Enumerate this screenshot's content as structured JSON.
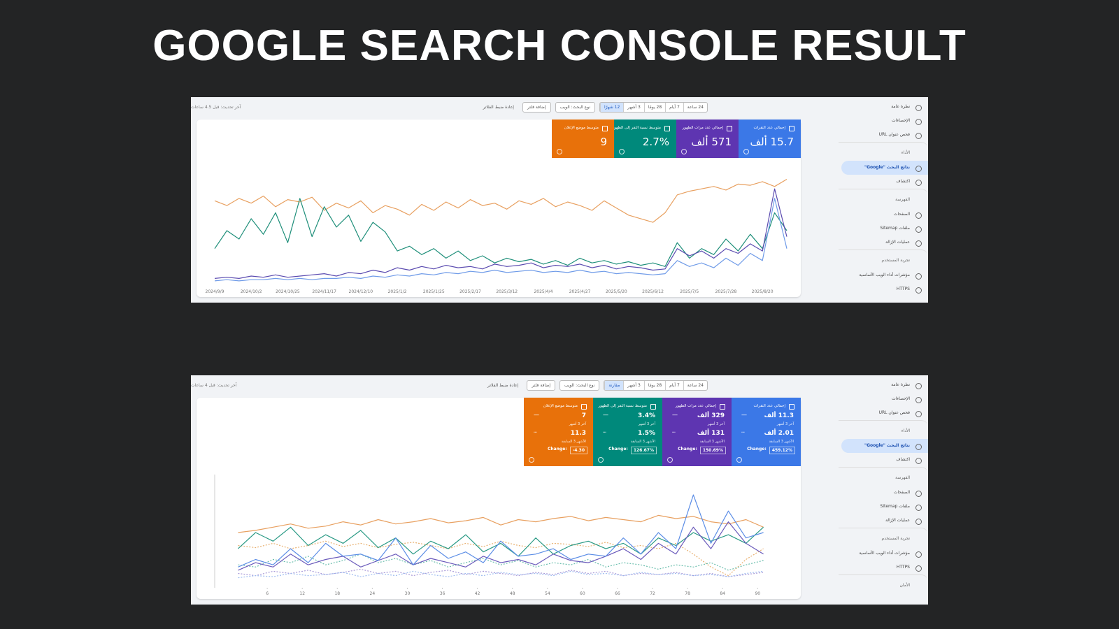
{
  "title": "GOOGLE SEARCH CONSOLE RESULT",
  "panels": [
    {
      "toolbar": {
        "ranges": [
          "24 ساعة",
          "7 أيام",
          "28 يومًا",
          "3 أشهر",
          "12 شهرًا"
        ],
        "selected_range": 4,
        "search_type": "نوع البحث: الويب",
        "add_filter": "إضافة فلتر",
        "reset": "إعادة ضبط الفلاتر",
        "updated": "آخر تحديث: قبل 4.5 ساعات"
      },
      "sidebar": [
        {
          "label": "نظرة عامة"
        },
        {
          "label": "الإحصاءات"
        },
        {
          "label": "فحص عنوان URL"
        },
        {
          "label": "الأداء",
          "kind": "header"
        },
        {
          "label": "نتائج البحث \"Google\"",
          "selected": true
        },
        {
          "label": "اكتشاف"
        },
        {
          "label": "الفهرسة",
          "kind": "header"
        },
        {
          "label": "الصفحات"
        },
        {
          "label": "ملفات Sitemap"
        },
        {
          "label": "عمليات الإزالة"
        },
        {
          "label": "تجربة المستخدم",
          "kind": "header"
        },
        {
          "label": "مؤشرات أداء الويب الأساسية"
        },
        {
          "label": "HTTPS"
        }
      ],
      "cards": [
        {
          "label": "إجمالي عدد النقرات",
          "value": "15.7 ألف",
          "color": "#3b78e7"
        },
        {
          "label": "إجمالي عدد مرات الظهور",
          "value": "571 ألف",
          "color": "#5e35b1"
        },
        {
          "label": "متوسط نسبة النقر إلى الظهور",
          "value": "2.7%",
          "color": "#00897b"
        },
        {
          "label": "متوسط موضع الإعلان",
          "value": "9",
          "color": "#e8710a"
        }
      ],
      "chart": {
        "type": "line",
        "ylim": [
          0,
          100
        ],
        "categories": [
          "2024/9/9",
          null,
          null,
          "2024/10/2",
          null,
          null,
          "2024/10/25",
          null,
          null,
          "2024/11/17",
          null,
          null,
          "2024/12/10",
          null,
          null,
          "2025/1/2",
          null,
          null,
          "2025/1/25",
          null,
          null,
          "2025/2/17",
          null,
          null,
          "2025/3/12",
          null,
          null,
          "2025/4/4",
          null,
          null,
          "2025/4/27",
          null,
          null,
          "2025/5/20",
          null,
          null,
          "2025/6/12",
          null,
          null,
          "2025/7/5",
          null,
          null,
          "2025/7/28",
          null,
          null,
          "2025/8/20",
          null,
          null
        ],
        "series": [
          {
            "color": "#e8a060",
            "values": [
              70,
              66,
              72,
              68,
              74,
              65,
              71,
              69,
              73,
              62,
              68,
              64,
              70,
              60,
              66,
              63,
              58,
              67,
              62,
              69,
              64,
              71,
              66,
              68,
              63,
              70,
              67,
              72,
              65,
              69,
              66,
              62,
              70,
              64,
              58,
              55,
              52,
              60,
              75,
              78,
              80,
              82,
              79,
              84,
              83,
              86,
              82,
              88
            ]
          },
          {
            "color": "#1f8f7a",
            "values": [
              30,
              45,
              38,
              55,
              42,
              60,
              35,
              72,
              40,
              65,
              48,
              58,
              36,
              52,
              44,
              28,
              32,
              25,
              30,
              22,
              28,
              20,
              24,
              18,
              22,
              19,
              21,
              17,
              20,
              16,
              22,
              18,
              20,
              17,
              19,
              16,
              18,
              15,
              35,
              22,
              30,
              25,
              38,
              28,
              42,
              30,
              60,
              45
            ]
          },
          {
            "color": "#5b4bb0",
            "values": [
              5,
              6,
              5,
              7,
              6,
              8,
              6,
              7,
              8,
              9,
              7,
              10,
              9,
              12,
              10,
              14,
              12,
              15,
              13,
              16,
              14,
              15,
              13,
              17,
              15,
              16,
              18,
              14,
              16,
              15,
              17,
              14,
              16,
              13,
              15,
              14,
              12,
              13,
              30,
              24,
              28,
              22,
              30,
              26,
              34,
              28,
              80,
              40
            ]
          },
          {
            "color": "#6f9be8",
            "values": [
              3,
              4,
              3,
              4,
              4,
              5,
              4,
              5,
              4,
              5,
              5,
              6,
              5,
              7,
              6,
              8,
              7,
              9,
              8,
              10,
              9,
              11,
              10,
              12,
              10,
              11,
              12,
              10,
              11,
              10,
              12,
              10,
              11,
              9,
              10,
              9,
              8,
              9,
              20,
              15,
              18,
              14,
              22,
              16,
              26,
              20,
              72,
              30
            ]
          }
        ]
      }
    },
    {
      "toolbar": {
        "ranges": [
          "24 ساعة",
          "7 أيام",
          "28 يومًا",
          "3 أشهر",
          "مقارنة"
        ],
        "selected_range": 4,
        "search_type": "نوع البحث: الويب",
        "add_filter": "إضافة فلتر",
        "reset": "إعادة ضبط الفلاتر",
        "updated": "آخر تحديث: قبل 4 ساعات"
      },
      "sidebar": [
        {
          "label": "نظرة عامة"
        },
        {
          "label": "الإحصاءات"
        },
        {
          "label": "فحص عنوان URL"
        },
        {
          "label": "الأداء",
          "kind": "header"
        },
        {
          "label": "نتائج البحث \"Google\"",
          "selected": true
        },
        {
          "label": "اكتشاف"
        },
        {
          "label": "الفهرسة",
          "kind": "header"
        },
        {
          "label": "الصفحات"
        },
        {
          "label": "ملفات Sitemap"
        },
        {
          "label": "عمليات الإزالة"
        },
        {
          "label": "تجربة المستخدم",
          "kind": "header"
        },
        {
          "label": "مؤشرات أداء الويب الأساسية"
        },
        {
          "label": "HTTPS"
        },
        {
          "label": "الأمان",
          "kind": "header"
        }
      ],
      "cards": [
        {
          "label": "إجمالي عدد النقرات",
          "value": "11.3 ألف",
          "period": "آخر 3 أشهر",
          "previous": "2.01 ألف",
          "previous_period": "الأشهر 3 السابقة",
          "change_label": "Change:",
          "change": "459.12%",
          "color": "#3b78e7"
        },
        {
          "label": "إجمالي عدد مرات الظهور",
          "value": "329 ألف",
          "period": "آخر 3 أشهر",
          "previous": "131 ألف",
          "previous_period": "الأشهر 3 السابقة",
          "change_label": "Change:",
          "change": "150.69%",
          "color": "#5e35b1"
        },
        {
          "label": "متوسط نسبة النقر إلى الظهور",
          "value": "3.4%",
          "period": "آخر 3 أشهر",
          "previous": "1.5%",
          "previous_period": "الأشهر 3 السابقة",
          "change_label": "Change:",
          "change": "126.67%",
          "color": "#00897b"
        },
        {
          "label": "متوسط موضع الإعلان",
          "value": "7",
          "period": "آخر 3 أشهر",
          "previous": "11.3",
          "previous_period": "الأشهر 3 السابقة",
          "change_label": "Change:",
          "change": "-4.30",
          "color": "#e8710a"
        }
      ],
      "chart": {
        "type": "line",
        "ylim": [
          0,
          100
        ],
        "xlim": [
          -3,
          95
        ],
        "xticks": [
          6,
          12,
          18,
          24,
          30,
          36,
          42,
          48,
          54,
          60,
          66,
          72,
          78,
          84,
          90
        ],
        "x": [
          1,
          4,
          7,
          10,
          13,
          16,
          19,
          22,
          25,
          28,
          31,
          34,
          37,
          40,
          43,
          46,
          49,
          52,
          55,
          58,
          61,
          64,
          67,
          70,
          73,
          76,
          79,
          82,
          85,
          88,
          91
        ],
        "series": [
          {
            "color": "#e8a060",
            "dashed": false,
            "values": [
              50,
              52,
              55,
              58,
              54,
              56,
              60,
              57,
              62,
              58,
              60,
              63,
              59,
              61,
              64,
              57,
              62,
              60,
              63,
              65,
              61,
              64,
              62,
              60,
              66,
              63,
              65,
              60,
              58,
              62,
              55
            ]
          },
          {
            "color": "#e8b070",
            "dashed": true,
            "values": [
              38,
              36,
              40,
              35,
              38,
              42,
              37,
              40,
              36,
              39,
              41,
              38,
              35,
              40,
              37,
              42,
              38,
              36,
              40,
              39,
              37,
              41,
              36,
              38,
              35,
              40,
              30,
              18,
              10,
              25,
              35
            ]
          },
          {
            "color": "#2a9a85",
            "dashed": false,
            "values": [
              35,
              50,
              42,
              55,
              38,
              48,
              40,
              52,
              36,
              45,
              30,
              42,
              35,
              48,
              32,
              40,
              28,
              45,
              30,
              38,
              42,
              35,
              40,
              30,
              45,
              38,
              50,
              42,
              48,
              40,
              55
            ]
          },
          {
            "color": "#6cbfae",
            "dashed": true,
            "values": [
              20,
              18,
              25,
              22,
              28,
              20,
              24,
              30,
              22,
              26,
              20,
              24,
              18,
              22,
              26,
              20,
              24,
              18,
              22,
              20,
              25,
              18,
              22,
              20,
              16,
              20,
              18,
              22,
              15,
              20,
              24
            ]
          },
          {
            "color": "#6a5abb",
            "dashed": false,
            "values": [
              15,
              22,
              18,
              30,
              20,
              25,
              28,
              18,
              24,
              30,
              20,
              26,
              22,
              18,
              28,
              22,
              25,
              20,
              30,
              24,
              22,
              28,
              35,
              25,
              40,
              30,
              55,
              35,
              60,
              40,
              30
            ]
          },
          {
            "color": "#a99ad8",
            "dashed": true,
            "values": [
              12,
              10,
              14,
              12,
              15,
              11,
              13,
              16,
              12,
              14,
              10,
              13,
              15,
              11,
              14,
              12,
              10,
              13,
              11,
              15,
              12,
              14,
              10,
              12,
              11,
              13,
              10,
              12,
              9,
              11,
              13
            ]
          },
          {
            "color": "#5b8de6",
            "dashed": false,
            "values": [
              18,
              25,
              20,
              35,
              22,
              40,
              28,
              30,
              24,
              45,
              20,
              38,
              26,
              32,
              22,
              42,
              28,
              30,
              35,
              25,
              30,
              28,
              45,
              30,
              50,
              35,
              85,
              40,
              70,
              45,
              50
            ]
          },
          {
            "color": "#9fbdf0",
            "dashed": true,
            "values": [
              8,
              10,
              9,
              12,
              10,
              11,
              13,
              9,
              12,
              10,
              14,
              11,
              9,
              12,
              10,
              13,
              11,
              12,
              10,
              14,
              11,
              12,
              10,
              13,
              11,
              12,
              10,
              11,
              9,
              12,
              14
            ]
          }
        ]
      }
    }
  ]
}
